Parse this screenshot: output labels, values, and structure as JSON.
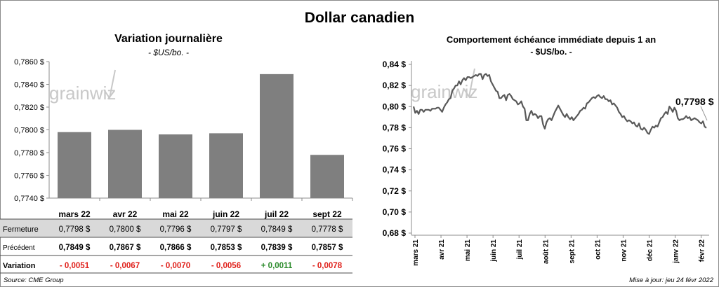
{
  "title": "Dollar canadien",
  "left_panel": {
    "title": "Variation  journalière",
    "unit": "- $US/bo. -",
    "watermark": "grainwiz",
    "row_labels": {
      "close": "Fermeture",
      "previous": "Précédent",
      "change": "Variation"
    },
    "close_values": [
      "0,7798  $",
      "0,7800  $",
      "0,7796  $",
      "0,7797  $",
      "0,7849  $",
      "0,7778  $"
    ],
    "previous_values": [
      "0,7849  $",
      "0,7867  $",
      "0,7866  $",
      "0,7853  $",
      "0,7839  $",
      "0,7857  $"
    ],
    "change_values": [
      "- 0,0051",
      "- 0,0067",
      "- 0,0070",
      "- 0,0056",
      "+ 0,0011",
      "- 0,0078"
    ],
    "change_colors": [
      "#e0201a",
      "#e0201a",
      "#e0201a",
      "#e0201a",
      "#2a8a2a",
      "#e0201a"
    ]
  },
  "right_panel": {
    "title": "Comportement échéance immédiate depuis 1 an",
    "unit": "- $US/bo. -",
    "watermark": "grainwiz",
    "last_label": "0,7798 $"
  },
  "source": "Source: CME Group",
  "updated": "Mise à jour: jeu 24 févr 2022",
  "chart_data": [
    {
      "type": "bar",
      "title": "Variation  journalière",
      "categories": [
        "mars 22",
        "avr 22",
        "mai 22",
        "juin 22",
        "juil 22",
        "sept 22"
      ],
      "series": [
        {
          "values": [
            0.7798,
            0.78,
            0.7796,
            0.7797,
            0.7849,
            0.7778
          ]
        }
      ],
      "ylim": [
        0.774,
        0.786
      ],
      "y_ticks": [
        0.774,
        0.776,
        0.778,
        0.78,
        0.782,
        0.784,
        0.786
      ],
      "y_tick_labels": [
        "0,7740 $",
        "0,7760 $",
        "0,7780 $",
        "0,7800 $",
        "0,7820 $",
        "0,7840 $",
        "0,7860 $"
      ],
      "bar_color": "#7f7f7f",
      "grid": false
    },
    {
      "type": "line",
      "title": "Comportement échéance immédiate depuis 1 an",
      "x_tick_labels": [
        "mars 21",
        "avr 21",
        "mai 21",
        "juin 21",
        "juil 21",
        "août 21",
        "sept 21",
        "oct 21",
        "nov 21",
        "déc 21",
        "janv 22",
        "févr 22"
      ],
      "series": [
        {
          "values": [
            0.8,
            0.794,
            0.796,
            0.793,
            0.797,
            0.797,
            0.795,
            0.797,
            0.797,
            0.797,
            0.796,
            0.798,
            0.798,
            0.798,
            0.799,
            0.799,
            0.797,
            0.795,
            0.799,
            0.802,
            0.804,
            0.807,
            0.808,
            0.815,
            0.817,
            0.82,
            0.82,
            0.824,
            0.821,
            0.825,
            0.827,
            0.825,
            0.828,
            0.828,
            0.827,
            0.828,
            0.829,
            0.83,
            0.829,
            0.831,
            0.831,
            0.826,
            0.83,
            0.831,
            0.829,
            0.83,
            0.824,
            0.821,
            0.818,
            0.815,
            0.814,
            0.808,
            0.808,
            0.81,
            0.811,
            0.806,
            0.811,
            0.812,
            0.81,
            0.807,
            0.806,
            0.805,
            0.802,
            0.803,
            0.805,
            0.8,
            0.798,
            0.787,
            0.787,
            0.793,
            0.796,
            0.792,
            0.793,
            0.792,
            0.789,
            0.791,
            0.791,
            0.783,
            0.779,
            0.785,
            0.788,
            0.789,
            0.787,
            0.791,
            0.795,
            0.798,
            0.801,
            0.798,
            0.795,
            0.792,
            0.79,
            0.793,
            0.79,
            0.788,
            0.79,
            0.787,
            0.789,
            0.791,
            0.793,
            0.796,
            0.797,
            0.799,
            0.798,
            0.803,
            0.804,
            0.806,
            0.808,
            0.809,
            0.808,
            0.81,
            0.811,
            0.809,
            0.808,
            0.81,
            0.807,
            0.807,
            0.805,
            0.806,
            0.802,
            0.803,
            0.801,
            0.799,
            0.795,
            0.793,
            0.79,
            0.791,
            0.788,
            0.786,
            0.787,
            0.786,
            0.784,
            0.785,
            0.782,
            0.781,
            0.784,
            0.779,
            0.778,
            0.78,
            0.778,
            0.775,
            0.774,
            0.778,
            0.781,
            0.78,
            0.782,
            0.781,
            0.785,
            0.789,
            0.79,
            0.793,
            0.795,
            0.793,
            0.8,
            0.798,
            0.795,
            0.799,
            0.796,
            0.789,
            0.787,
            0.788,
            0.788,
            0.789,
            0.791,
            0.789,
            0.79,
            0.787,
            0.788,
            0.789,
            0.788,
            0.787,
            0.785,
            0.784,
            0.786,
            0.781,
            0.7798
          ]
        }
      ],
      "ylim": [
        0.68,
        0.84
      ],
      "y_ticks": [
        0.68,
        0.7,
        0.72,
        0.74,
        0.76,
        0.78,
        0.8,
        0.82,
        0.84
      ],
      "y_tick_labels": [
        "0,68 $",
        "0,70 $",
        "0,72 $",
        "0,74 $",
        "0,76 $",
        "0,78 $",
        "0,80 $",
        "0,82 $",
        "0,84 $"
      ],
      "line_color": "#595959",
      "grid": false
    }
  ]
}
